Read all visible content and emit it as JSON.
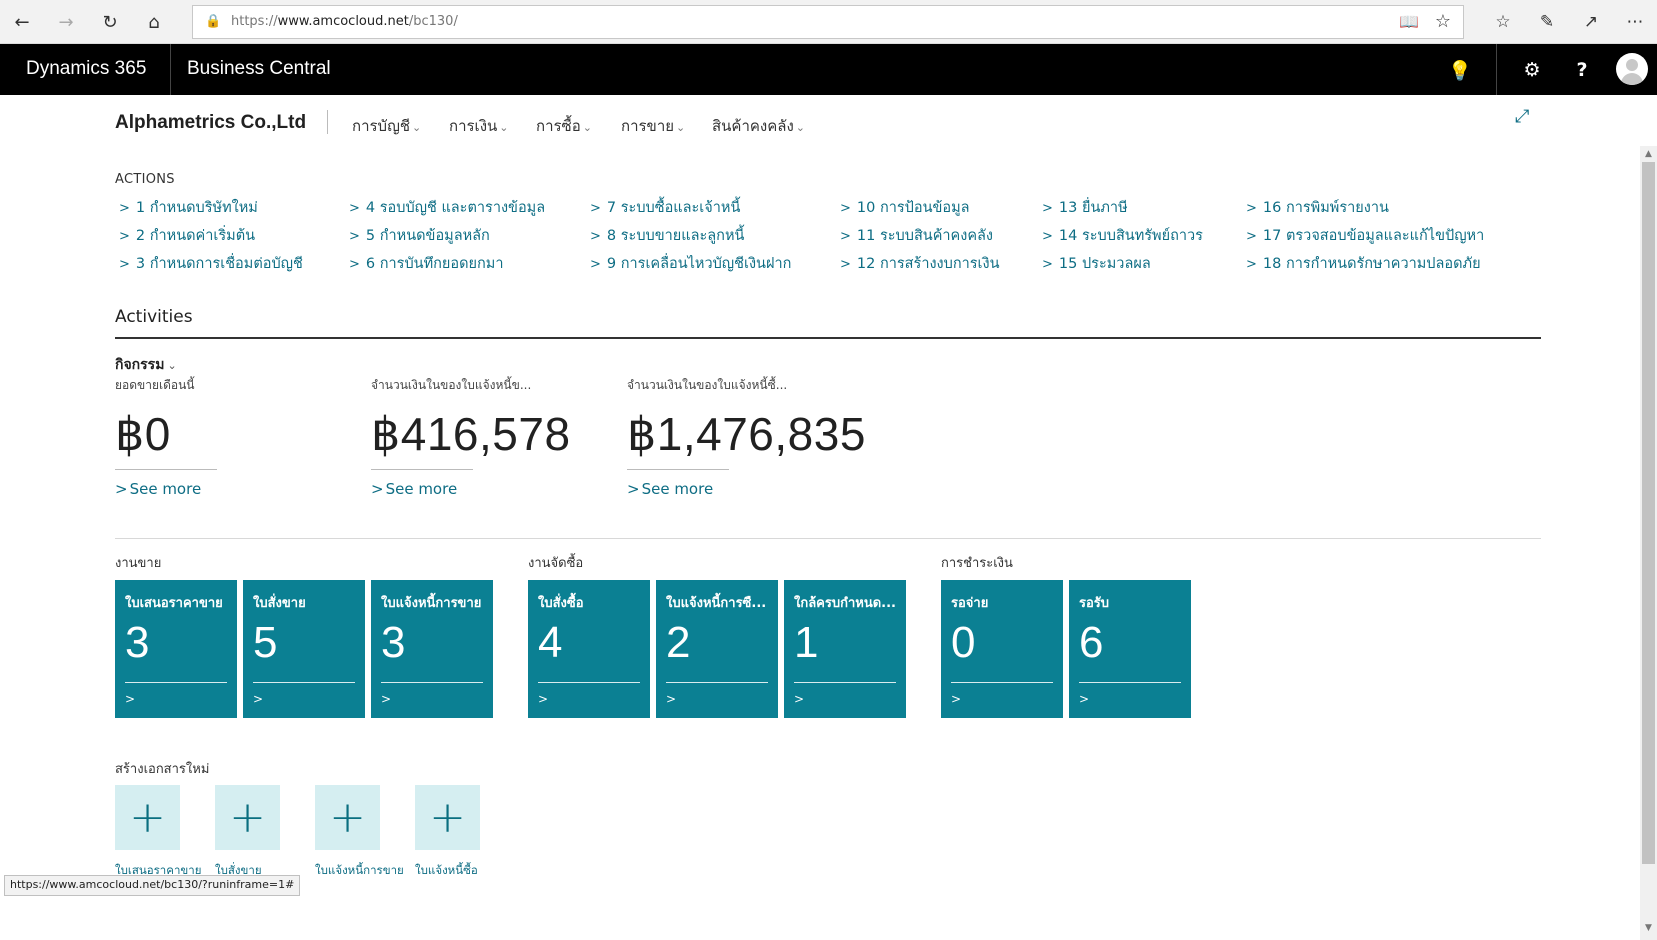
{
  "browser": {
    "url_prefix": "https://",
    "url_host": "www.amcocloud.net",
    "url_path": "/bc130/",
    "status_url": "https://www.amcocloud.net/bc130/?runinframe=1#"
  },
  "header": {
    "brand": "Dynamics 365",
    "product": "Business Central"
  },
  "company": {
    "name": "Alphametrics Co.,Ltd",
    "menus": [
      "การบัญชี",
      "การเงิน",
      "การซื้อ",
      "การขาย",
      "สินค้าคงคลัง"
    ]
  },
  "actions": {
    "title": "ACTIONS",
    "items": [
      "1 กำหนดบริษัทใหม่",
      "2 กำหนดค่าเริ่มต้น",
      "3 กำหนดการเชื่อมต่อบัญชี",
      "4 รอบบัญชี และตารางข้อมูล",
      "5 กำหนดข้อมูลหลัก",
      "6 การบันทึกยอดยกมา",
      "7 ระบบซื้อและเจ้าหนี้",
      "8 ระบบขายและลูกหนี้",
      "9 การเคลื่อนไหวบัญชีเงินฝาก",
      "10 การป้อนข้อมูล",
      "11 ระบบสินค้าคงคลัง",
      "12 การสร้างงบการเงิน",
      "13 ยื่นภาษี",
      "14 ระบบสินทรัพย์ถาวร",
      "15 ประมวลผล",
      "16 การพิมพ์รายงาน",
      "17 ตรวจสอบข้อมูลและแก้ไขปัญหา",
      "18 การกำหนดรักษาความปลอดภัย"
    ]
  },
  "activities": {
    "title": "Activities",
    "group": "กิจกรรม",
    "cues": [
      {
        "label": "ยอดขายเดือนนี้",
        "value": "฿0",
        "more": "See more"
      },
      {
        "label": "จำนวนเงินในของใบแจ้งหนี้ข...",
        "value": "฿416,578",
        "more": "See more"
      },
      {
        "label": "จำนวนเงินในของใบแจ้งหนี้ซื้...",
        "value": "฿1,476,835",
        "more": "See more"
      }
    ]
  },
  "tile_groups": [
    {
      "title": "งานขาย",
      "tiles": [
        {
          "label": "ใบเสนอราคาขาย",
          "value": "3"
        },
        {
          "label": "ใบสั่งขาย",
          "value": "5"
        },
        {
          "label": "ใบแจ้งหนี้การขาย",
          "value": "3"
        }
      ]
    },
    {
      "title": "งานจัดซื้อ",
      "tiles": [
        {
          "label": "ใบสั่งซื้อ",
          "value": "4"
        },
        {
          "label": "ใบแจ้งหนี้การซื...",
          "value": "2"
        },
        {
          "label": "ใกล้ครบกำหนด...",
          "value": "1"
        }
      ]
    },
    {
      "title": "การชำระเงิน",
      "tiles": [
        {
          "label": "รอจ่าย",
          "value": "0"
        },
        {
          "label": "รอรับ",
          "value": "6"
        }
      ]
    }
  ],
  "new_documents": {
    "title": "สร้างเอกสารใหม่",
    "items": [
      "ใบเสนอราคาขาย",
      "ใบสั่งขาย",
      "ใบแจ้งหนี้การขาย",
      "ใบแจ้งหนี้ซื้อ"
    ]
  },
  "icons": {
    "back": "arrow-left-icon",
    "forward": "arrow-right-icon",
    "refresh": "refresh-icon",
    "home": "home-icon",
    "lightbulb": "lightbulb-icon",
    "settings": "gear-icon",
    "help": "question-icon"
  },
  "colors": {
    "tile": "#0b8093",
    "link": "#0e6d84",
    "new_tile": "#d5eef1",
    "header_bg": "#000000"
  }
}
